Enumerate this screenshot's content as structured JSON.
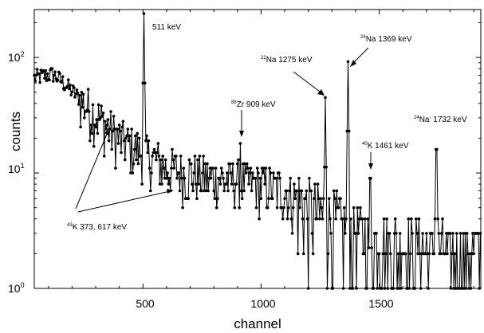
{
  "chart_data": {
    "type": "line",
    "xlabel": "channel",
    "ylabel": "counts",
    "xlim": [
      40,
      1930
    ],
    "ylim": [
      1,
      260
    ],
    "y_scale": "log",
    "x_ticks": [
      {
        "value": 500,
        "label": "500"
      },
      {
        "value": 1000,
        "label": "1000"
      },
      {
        "value": 1500,
        "label": "1500"
      }
    ],
    "y_ticks": [
      {
        "value": 1,
        "base": "10",
        "exp": "0"
      },
      {
        "value": 10,
        "base": "10",
        "exp": "1"
      },
      {
        "value": 100,
        "base": "10",
        "exp": "2"
      }
    ],
    "grid": false,
    "marker": "circle",
    "series": [
      {
        "sampling": "background trend, counts vs channel",
        "x": [
          40,
          80,
          120,
          160,
          200,
          250,
          300,
          350,
          400,
          450,
          500,
          550,
          600,
          700,
          800,
          900,
          1000,
          1100,
          1200,
          1300,
          1400,
          1500,
          1600,
          1700,
          1800,
          1930
        ],
        "y": [
          65,
          68,
          70,
          60,
          50,
          40,
          32,
          25,
          20,
          17,
          15,
          13,
          11,
          10,
          9,
          8.5,
          8,
          7,
          5,
          4,
          3,
          2.6,
          2.4,
          2.2,
          2,
          2
        ],
        "peaks": [
          {
            "x": 505,
            "y": 240
          },
          {
            "x": 1272,
            "y": 45
          },
          {
            "x": 1368,
            "y": 92
          },
          {
            "x": 1742,
            "y": 16
          },
          {
            "x": 912,
            "y": 18
          },
          {
            "x": 1462,
            "y": 9
          }
        ]
      }
    ],
    "annotations": [
      {
        "sup": "",
        "text": "511 keV"
      },
      {
        "sup": "22",
        "text": "Na 1275 keV"
      },
      {
        "sup": "24",
        "text": "Na 1369 keV"
      },
      {
        "sup": "88",
        "text": "Zr 909 keV"
      },
      {
        "sup": "40",
        "text": "K 1461 keV"
      },
      {
        "sup": "24",
        "text": "Na",
        "sup2": "-",
        "text2": " 1732 keV"
      },
      {
        "sup": "43",
        "text": "K 373, 617 keV"
      }
    ]
  }
}
